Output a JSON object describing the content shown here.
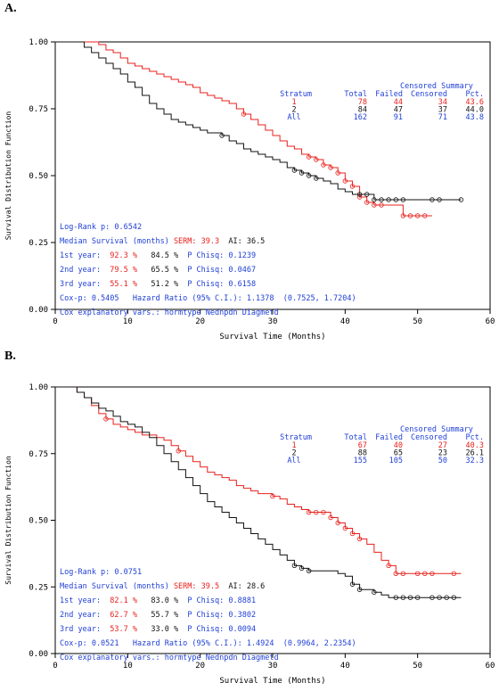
{
  "panels": [
    {
      "label": "A.",
      "chart_data": {
        "type": "line",
        "xlabel": "Survival Time (Months)",
        "ylabel": "Survival Distribution Function",
        "xlim": [
          0,
          60
        ],
        "ylim": [
          0,
          1
        ],
        "x_ticks": [
          "0",
          "10",
          "20",
          "30",
          "40",
          "50",
          "60"
        ],
        "y_ticks": [
          "0.00",
          "0.25",
          "0.50",
          "0.75",
          "1.00"
        ],
        "series": [
          {
            "color": "#e8201c",
            "x": [
              0,
              5,
              6,
              7,
              8,
              9,
              10,
              11,
              12,
              13,
              14,
              15,
              16,
              17,
              18,
              19,
              20,
              21,
              22,
              23,
              24,
              25,
              26,
              27,
              28,
              29,
              30,
              31,
              32,
              33,
              34,
              35,
              36,
              37,
              38,
              39,
              40,
              41,
              42,
              43,
              44,
              45,
              46,
              47,
              48,
              49,
              50,
              51,
              52
            ],
            "y": [
              1.0,
              1.0,
              0.99,
              0.97,
              0.96,
              0.94,
              0.92,
              0.91,
              0.9,
              0.89,
              0.88,
              0.87,
              0.86,
              0.85,
              0.84,
              0.83,
              0.81,
              0.8,
              0.79,
              0.78,
              0.77,
              0.75,
              0.73,
              0.71,
              0.69,
              0.67,
              0.65,
              0.63,
              0.61,
              0.6,
              0.58,
              0.57,
              0.56,
              0.54,
              0.53,
              0.51,
              0.48,
              0.46,
              0.42,
              0.4,
              0.39,
              0.39,
              0.39,
              0.39,
              0.35,
              0.35,
              0.35,
              0.35,
              0.35
            ],
            "censored_x": [
              26,
              35,
              36,
              37,
              38,
              39,
              40,
              41,
              42,
              43,
              44,
              45,
              48,
              49,
              50,
              51
            ]
          },
          {
            "color": "#111111",
            "x": [
              0,
              3,
              4,
              5,
              6,
              7,
              8,
              9,
              10,
              11,
              12,
              13,
              14,
              15,
              16,
              17,
              18,
              19,
              20,
              21,
              22,
              23,
              24,
              25,
              26,
              27,
              28,
              29,
              30,
              31,
              32,
              33,
              34,
              35,
              36,
              37,
              38,
              39,
              40,
              41,
              42,
              43,
              44,
              45,
              46,
              47,
              48,
              49,
              50,
              51,
              52,
              53,
              54,
              55,
              56
            ],
            "y": [
              1.0,
              1.0,
              0.98,
              0.96,
              0.94,
              0.92,
              0.9,
              0.88,
              0.85,
              0.83,
              0.8,
              0.77,
              0.75,
              0.73,
              0.71,
              0.7,
              0.69,
              0.68,
              0.67,
              0.66,
              0.66,
              0.65,
              0.63,
              0.62,
              0.6,
              0.59,
              0.58,
              0.57,
              0.56,
              0.55,
              0.53,
              0.52,
              0.51,
              0.5,
              0.49,
              0.48,
              0.47,
              0.45,
              0.44,
              0.43,
              0.43,
              0.43,
              0.41,
              0.41,
              0.41,
              0.41,
              0.41,
              0.41,
              0.41,
              0.41,
              0.41,
              0.41,
              0.41,
              0.41,
              0.41
            ],
            "censored_x": [
              23,
              33,
              34,
              35,
              36,
              42,
              43,
              44,
              45,
              46,
              47,
              48,
              52,
              53,
              56
            ]
          }
        ],
        "censored_table": {
          "title": "Censored Summary",
          "headers": [
            "Stratum",
            "Total",
            "Failed",
            "Censored",
            "Pct."
          ],
          "rows": [
            {
              "color": "#e8201c",
              "cells": [
                "1",
                "78",
                "44",
                "34",
                "43.6"
              ]
            },
            {
              "color": "#111111",
              "cells": [
                "2",
                "84",
                "47",
                "37",
                "44.0"
              ]
            },
            {
              "color": "#1f3fd6",
              "cells": [
                "All",
                "162",
                "91",
                "71",
                "43.8"
              ]
            }
          ]
        },
        "stats": [
          {
            "parts": [
              {
                "text": "Log-Rank p: 0.6542",
                "color": "#1f3fd6"
              }
            ]
          },
          {
            "parts": [
              {
                "text": "Median Survival (months) ",
                "color": "#1f3fd6"
              },
              {
                "text": "SERM: 39.3",
                "color": "#e8201c"
              },
              {
                "text": "  AI: 36.5",
                "color": "#111111"
              }
            ]
          },
          {
            "parts": [
              {
                "text": "1st year:  ",
                "color": "#1f3fd6"
              },
              {
                "text": "92.3 %",
                "color": "#e8201c"
              },
              {
                "text": "   84.5 %",
                "color": "#111111"
              },
              {
                "text": "  P Chisq: 0.1239",
                "color": "#1f3fd6"
              }
            ]
          },
          {
            "parts": [
              {
                "text": "2nd year:  ",
                "color": "#1f3fd6"
              },
              {
                "text": "79.5 %",
                "color": "#e8201c"
              },
              {
                "text": "   65.5 %",
                "color": "#111111"
              },
              {
                "text": "  P Chisq: 0.0467",
                "color": "#1f3fd6"
              }
            ]
          },
          {
            "parts": [
              {
                "text": "3rd year:  ",
                "color": "#1f3fd6"
              },
              {
                "text": "55.1 %",
                "color": "#e8201c"
              },
              {
                "text": "   51.2 %",
                "color": "#111111"
              },
              {
                "text": "  P Chisq: 0.6158",
                "color": "#1f3fd6"
              }
            ]
          },
          {
            "parts": [
              {
                "text": "Cox-p: 0.5405   Hazard Ratio (95% C.I.): 1.1378  (0.7525, 1.7204)",
                "color": "#1f3fd6"
              }
            ]
          },
          {
            "parts": [
              {
                "text": "Cox explanatory vars.: hormtype Nednpdn Diagmetd",
                "color": "#1f3fd6"
              }
            ]
          }
        ]
      }
    },
    {
      "label": "B.",
      "chart_data": {
        "type": "line",
        "xlabel": "Survival Time (Months)",
        "ylabel": "Survival Distribution Function",
        "xlim": [
          0,
          60
        ],
        "ylim": [
          0,
          1
        ],
        "x_ticks": [
          "0",
          "10",
          "20",
          "30",
          "40",
          "50",
          "60"
        ],
        "y_ticks": [
          "0.00",
          "0.25",
          "0.50",
          "0.75",
          "1.00"
        ],
        "series": [
          {
            "color": "#e8201c",
            "x": [
              0,
              2,
              3,
              4,
              5,
              6,
              7,
              8,
              9,
              10,
              11,
              12,
              13,
              14,
              15,
              16,
              17,
              18,
              19,
              20,
              21,
              22,
              23,
              24,
              25,
              26,
              27,
              28,
              29,
              30,
              31,
              32,
              33,
              34,
              35,
              36,
              37,
              38,
              39,
              40,
              41,
              42,
              43,
              44,
              45,
              46,
              47,
              48,
              49,
              50,
              51,
              52,
              53,
              54,
              55,
              56
            ],
            "y": [
              1.0,
              1.0,
              0.98,
              0.96,
              0.93,
              0.9,
              0.88,
              0.86,
              0.85,
              0.84,
              0.83,
              0.82,
              0.82,
              0.81,
              0.8,
              0.78,
              0.76,
              0.74,
              0.72,
              0.7,
              0.68,
              0.67,
              0.66,
              0.65,
              0.63,
              0.62,
              0.61,
              0.6,
              0.6,
              0.59,
              0.58,
              0.56,
              0.55,
              0.54,
              0.53,
              0.53,
              0.53,
              0.51,
              0.49,
              0.47,
              0.45,
              0.43,
              0.41,
              0.38,
              0.35,
              0.33,
              0.3,
              0.3,
              0.3,
              0.3,
              0.3,
              0.3,
              0.3,
              0.3,
              0.3,
              0.3
            ],
            "censored_x": [
              7,
              17,
              30,
              35,
              36,
              37,
              38,
              39,
              40,
              41,
              42,
              46,
              47,
              48,
              50,
              51,
              52,
              55
            ]
          },
          {
            "color": "#111111",
            "x": [
              0,
              2,
              3,
              4,
              5,
              6,
              7,
              8,
              9,
              10,
              11,
              12,
              13,
              14,
              15,
              16,
              17,
              18,
              19,
              20,
              21,
              22,
              23,
              24,
              25,
              26,
              27,
              28,
              29,
              30,
              31,
              32,
              33,
              34,
              35,
              36,
              37,
              38,
              39,
              40,
              41,
              42,
              43,
              44,
              45,
              46,
              47,
              48,
              49,
              50,
              51,
              52,
              53,
              54,
              55,
              56
            ],
            "y": [
              1.0,
              1.0,
              0.98,
              0.96,
              0.94,
              0.92,
              0.91,
              0.89,
              0.87,
              0.86,
              0.85,
              0.83,
              0.81,
              0.78,
              0.75,
              0.72,
              0.69,
              0.66,
              0.63,
              0.6,
              0.57,
              0.55,
              0.53,
              0.51,
              0.49,
              0.47,
              0.45,
              0.43,
              0.41,
              0.39,
              0.37,
              0.35,
              0.33,
              0.32,
              0.31,
              0.31,
              0.31,
              0.31,
              0.3,
              0.29,
              0.26,
              0.24,
              0.24,
              0.23,
              0.22,
              0.21,
              0.21,
              0.21,
              0.21,
              0.21,
              0.21,
              0.21,
              0.21,
              0.21,
              0.21,
              0.21
            ],
            "censored_x": [
              33,
              34,
              35,
              41,
              42,
              44,
              47,
              48,
              49,
              50,
              52,
              53,
              54,
              55
            ]
          }
        ],
        "censored_table": {
          "title": "Censored Summary",
          "headers": [
            "Stratum",
            "Total",
            "Failed",
            "Censored",
            "Pct."
          ],
          "rows": [
            {
              "color": "#e8201c",
              "cells": [
                "1",
                "67",
                "40",
                "27",
                "40.3"
              ]
            },
            {
              "color": "#111111",
              "cells": [
                "2",
                "88",
                "65",
                "23",
                "26.1"
              ]
            },
            {
              "color": "#1f3fd6",
              "cells": [
                "All",
                "155",
                "105",
                "50",
                "32.3"
              ]
            }
          ]
        },
        "stats": [
          {
            "parts": [
              {
                "text": "Log-Rank p: 0.0751",
                "color": "#1f3fd6"
              }
            ]
          },
          {
            "parts": [
              {
                "text": "Median Survival (months) ",
                "color": "#1f3fd6"
              },
              {
                "text": "SERM: 39.5",
                "color": "#e8201c"
              },
              {
                "text": "  AI: 28.6",
                "color": "#111111"
              }
            ]
          },
          {
            "parts": [
              {
                "text": "1st year:  ",
                "color": "#1f3fd6"
              },
              {
                "text": "82.1 %",
                "color": "#e8201c"
              },
              {
                "text": "   83.0 %",
                "color": "#111111"
              },
              {
                "text": "  P Chisq: 0.8881",
                "color": "#1f3fd6"
              }
            ]
          },
          {
            "parts": [
              {
                "text": "2nd year:  ",
                "color": "#1f3fd6"
              },
              {
                "text": "62.7 %",
                "color": "#e8201c"
              },
              {
                "text": "   55.7 %",
                "color": "#111111"
              },
              {
                "text": "  P Chisq: 0.3802",
                "color": "#1f3fd6"
              }
            ]
          },
          {
            "parts": [
              {
                "text": "3rd year:  ",
                "color": "#1f3fd6"
              },
              {
                "text": "53.7 %",
                "color": "#e8201c"
              },
              {
                "text": "   33.0 %",
                "color": "#111111"
              },
              {
                "text": "  P Chisq: 0.0094",
                "color": "#1f3fd6"
              }
            ]
          },
          {
            "parts": [
              {
                "text": "Cox-p: 0.0521   Hazard Ratio (95% C.I.): 1.4924  (0.9964, 2.2354)",
                "color": "#1f3fd6"
              }
            ]
          },
          {
            "parts": [
              {
                "text": "Cox explanatory vars.: hormtype Nednpdn Diagmetd",
                "color": "#1f3fd6"
              }
            ]
          }
        ]
      }
    }
  ]
}
